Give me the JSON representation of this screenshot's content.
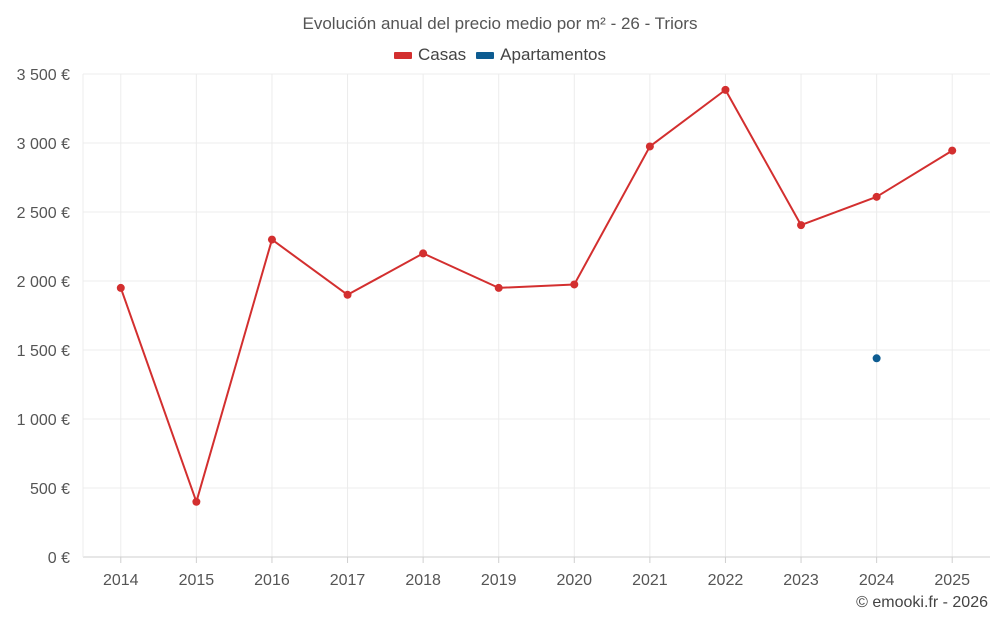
{
  "chart_data": {
    "type": "line",
    "title": "Evolución anual del precio medio por m² - 26 - Triors",
    "xlabel": "",
    "ylabel": "",
    "categories": [
      "2014",
      "2015",
      "2016",
      "2017",
      "2018",
      "2019",
      "2020",
      "2021",
      "2022",
      "2023",
      "2024",
      "2025"
    ],
    "ylim": [
      0,
      3500
    ],
    "yticks": [
      0,
      500,
      1000,
      1500,
      2000,
      2500,
      3000,
      3500
    ],
    "ytick_labels": [
      "0 €",
      "500 €",
      "1 000 €",
      "1 500 €",
      "2 000 €",
      "2 500 €",
      "3 000 €",
      "3 500 €"
    ],
    "grid": true,
    "legend_position": "top-center",
    "series": [
      {
        "name": "Casas",
        "color": "#d32f2f",
        "values": [
          1950,
          400,
          2300,
          1900,
          2200,
          1950,
          1975,
          2975,
          3385,
          2405,
          2610,
          2945
        ]
      },
      {
        "name": "Apartamentos",
        "color": "#0d5c91",
        "values": [
          null,
          null,
          null,
          null,
          null,
          null,
          null,
          null,
          null,
          null,
          1440,
          null
        ]
      }
    ]
  },
  "credit": "© emooki.fr - 2026"
}
